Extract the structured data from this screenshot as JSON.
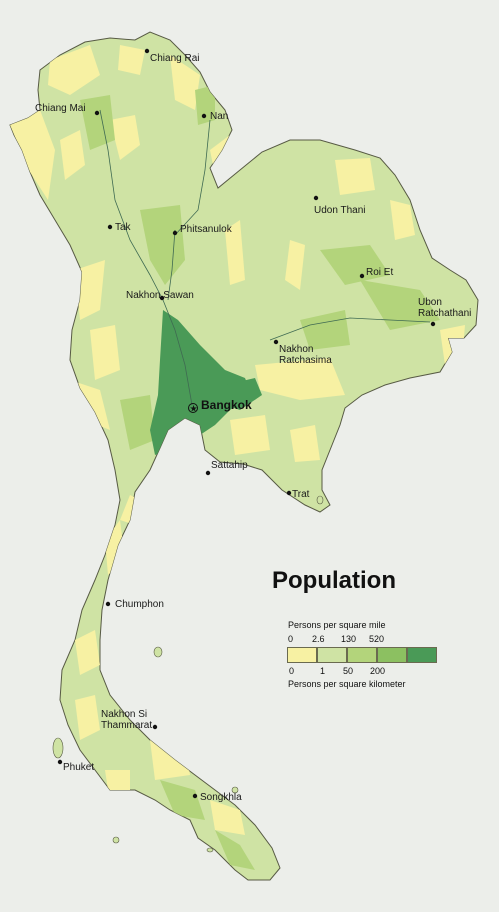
{
  "map": {
    "country": "Thailand",
    "colors": {
      "background": "#eceeea",
      "class0": "#f7f1a3",
      "class1": "#cfe3a4",
      "class2": "#b3d47b",
      "class3": "#8cc061",
      "class4": "#4a9a57",
      "river": "#3f6a52",
      "border": "#575a44"
    },
    "cities": [
      {
        "name": "Chiang Rai"
      },
      {
        "name": "Chiang Mai"
      },
      {
        "name": "Nan"
      },
      {
        "name": "Udon Thani"
      },
      {
        "name": "Tak"
      },
      {
        "name": "Phitsanulok"
      },
      {
        "name": "Roi Et"
      },
      {
        "name": "Nakhon Sawan"
      },
      {
        "name": "Ubon Ratchathani"
      },
      {
        "name": "Nakhon Ratchasima"
      },
      {
        "name": "Bangkok",
        "capital": true
      },
      {
        "name": "Sattahip"
      },
      {
        "name": "Trat"
      },
      {
        "name": "Chumphon"
      },
      {
        "name": "Nakhon Si Thammarat"
      },
      {
        "name": "Phuket"
      },
      {
        "name": "Songkhla"
      }
    ]
  },
  "legend": {
    "title": "Population",
    "top_caption": "Persons per square mile",
    "bottom_caption": "Persons per square kilometer",
    "mile_ticks": [
      "0",
      "2.6",
      "130",
      "520"
    ],
    "km_ticks": [
      "0",
      "1",
      "50",
      "200"
    ],
    "swatches": [
      "#f7f1a3",
      "#cfe3a4",
      "#b3d47b",
      "#8cc061",
      "#4a9a57"
    ]
  }
}
